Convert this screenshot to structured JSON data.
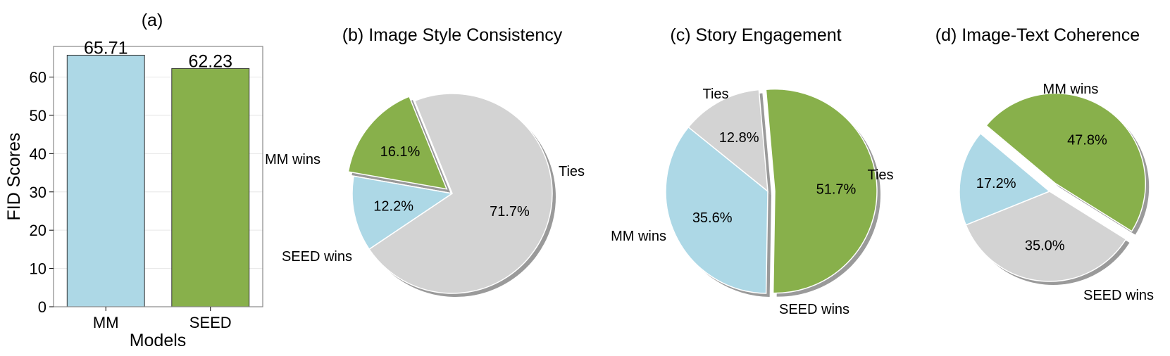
{
  "chart_data": [
    {
      "type": "bar",
      "title": "(a)",
      "categories": [
        "MM",
        "SEED"
      ],
      "values": [
        65.71,
        62.23
      ],
      "value_labels": [
        "65.71",
        "62.23"
      ],
      "xlabel": "Models",
      "ylabel": "FID Scores",
      "ylim": [
        0,
        68
      ],
      "yticks": [
        "0",
        "10",
        "20",
        "30",
        "40",
        "50",
        "60"
      ],
      "grid": true,
      "colors": [
        "#add8e6",
        "#88b04b"
      ]
    },
    {
      "type": "pie",
      "title": "(b) Image Style Consistency",
      "slices": [
        {
          "label": "MM wins",
          "value": 12.2,
          "pct": "12.2%",
          "color": "#add8e6"
        },
        {
          "label": "Ties",
          "value": 71.7,
          "pct": "71.7%",
          "color": "#d3d3d3"
        },
        {
          "label": "SEED wins",
          "value": 16.1,
          "pct": "16.1%",
          "color": "#88b04b"
        }
      ]
    },
    {
      "type": "pie",
      "title": "(c) Story Engagement",
      "slices": [
        {
          "label": "Ties",
          "value": 12.8,
          "pct": "12.8%",
          "color": "#d3d3d3"
        },
        {
          "label": "MM wins",
          "value": 35.6,
          "pct": "35.6%",
          "color": "#add8e6"
        },
        {
          "label": "SEED wins",
          "value": 51.7,
          "pct": "51.7%",
          "color": "#88b04b"
        }
      ]
    },
    {
      "type": "pie",
      "title": "(d) Image-Text Coherence",
      "slices": [
        {
          "label": "MM wins",
          "value": 17.2,
          "pct": "17.2%",
          "color": "#add8e6"
        },
        {
          "label": "Ties",
          "value": 35.0,
          "pct": "35.0%",
          "color": "#d3d3d3"
        },
        {
          "label": "SEED wins",
          "value": 47.8,
          "pct": "47.8%",
          "color": "#88b04b"
        }
      ]
    }
  ]
}
